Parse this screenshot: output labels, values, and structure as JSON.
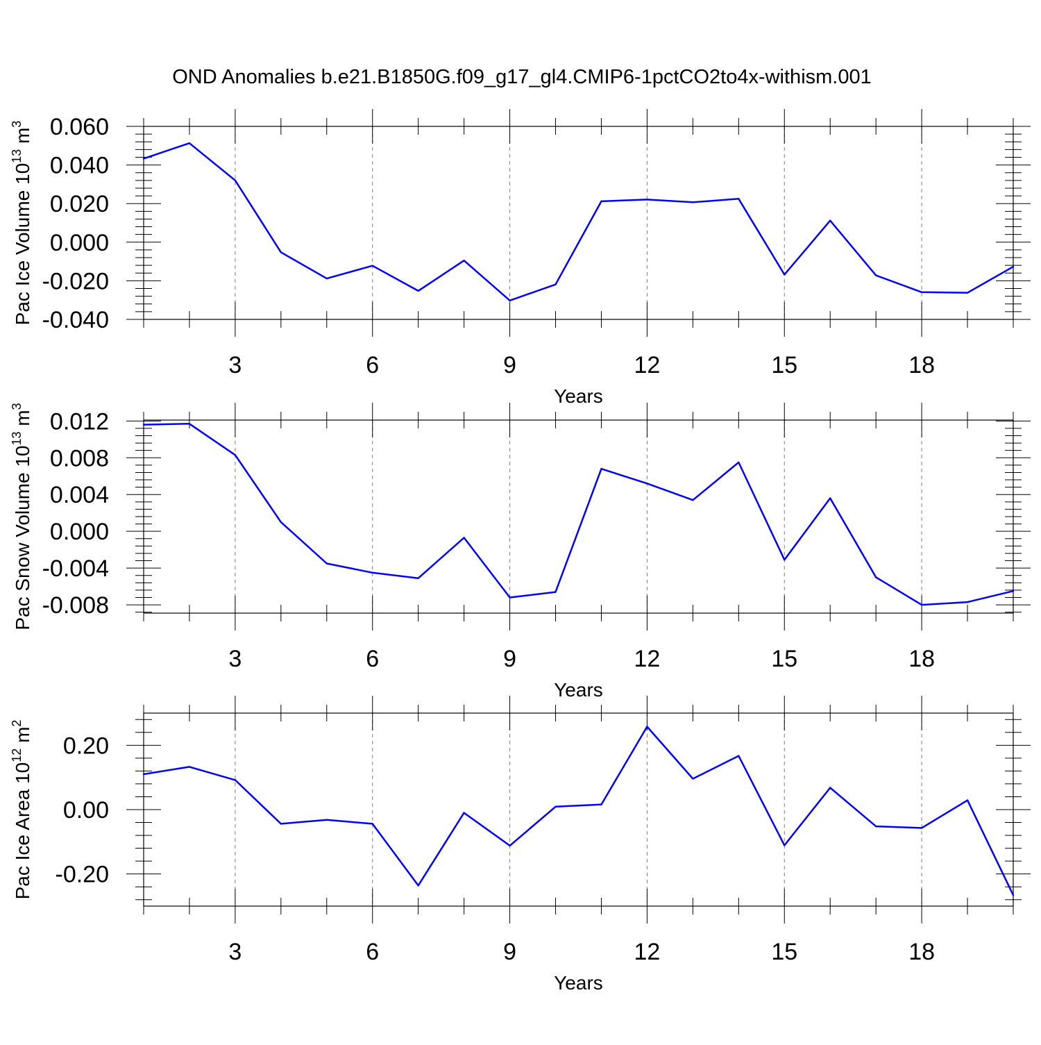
{
  "chart_data": [
    {
      "type": "line",
      "title": "OND Anomalies b.e21.B1850G.f09_g17_gl4.CMIP6-1pctCO2to4x-withism.001",
      "ylabel": {
        "main": "Pac Ice Volume 10",
        "exp": "13",
        "unit": " m",
        "unit_exp": "3"
      },
      "xlabel": "Years",
      "xlim": [
        1,
        20
      ],
      "ylim": [
        -0.04,
        0.06
      ],
      "xticks": [
        3,
        6,
        9,
        12,
        15,
        18
      ],
      "xtick_labels": [
        "3",
        "6",
        "9",
        "12",
        "15",
        "18"
      ],
      "yticks": [
        -0.04,
        -0.02,
        0.0,
        0.02,
        0.04,
        0.06
      ],
      "ytick_labels": [
        "-0.040",
        "-0.020",
        "0.000",
        "0.020",
        "0.040",
        "0.060"
      ],
      "grid": "vertical dashed at major x ticks",
      "color": "#0000ff",
      "x": [
        1,
        2,
        3,
        4,
        5,
        6,
        7,
        8,
        9,
        10,
        11,
        12,
        13,
        14,
        15,
        16,
        17,
        18,
        19,
        20
      ],
      "y": [
        0.0433,
        0.0513,
        0.032,
        -0.0052,
        -0.0188,
        -0.0122,
        -0.0252,
        -0.0095,
        -0.0302,
        -0.0219,
        0.0212,
        0.0221,
        0.0207,
        0.0225,
        -0.0168,
        0.0112,
        -0.0172,
        -0.0259,
        -0.0262,
        -0.0127
      ]
    },
    {
      "type": "line",
      "title": "",
      "ylabel": {
        "main": "Pac Snow Volume 10",
        "exp": "13",
        "unit": " m",
        "unit_exp": "3"
      },
      "xlabel": "Years",
      "xlim": [
        1,
        20
      ],
      "ylim": [
        -0.0089,
        0.0121
      ],
      "xticks": [
        3,
        6,
        9,
        12,
        15,
        18
      ],
      "xtick_labels": [
        "3",
        "6",
        "9",
        "12",
        "15",
        "18"
      ],
      "yticks": [
        -0.008,
        -0.004,
        0.0,
        0.004,
        0.008,
        0.012
      ],
      "ytick_labels": [
        "-0.008",
        "-0.004",
        "0.000",
        "0.004",
        "0.008",
        "0.012"
      ],
      "grid": "vertical dashed at major x ticks",
      "color": "#0000ff",
      "x": [
        1,
        2,
        3,
        4,
        5,
        6,
        7,
        8,
        9,
        10,
        11,
        12,
        13,
        14,
        15,
        16,
        17,
        18,
        19,
        20
      ],
      "y": [
        0.0116,
        0.0117,
        0.0083,
        0.001,
        -0.0035,
        -0.0045,
        -0.0051,
        -0.0007,
        -0.0072,
        -0.0066,
        0.0068,
        0.0052,
        0.0034,
        0.0075,
        -0.0031,
        0.0036,
        -0.005,
        -0.008,
        -0.0077,
        -0.0065
      ]
    },
    {
      "type": "line",
      "title": "",
      "ylabel": {
        "main": "Pac Ice Area 10",
        "exp": "12",
        "unit": " m",
        "unit_exp": "2"
      },
      "xlabel": "Years",
      "xlim": [
        1,
        20
      ],
      "ylim": [
        -0.3,
        0.3
      ],
      "xticks": [
        3,
        6,
        9,
        12,
        15,
        18
      ],
      "xtick_labels": [
        "3",
        "6",
        "9",
        "12",
        "15",
        "18"
      ],
      "yticks": [
        -0.2,
        0.0,
        0.2
      ],
      "ytick_labels": [
        "-0.20",
        "0.00",
        "0.20"
      ],
      "grid": "vertical dashed at major x ticks",
      "color": "#0000ff",
      "x": [
        1,
        2,
        3,
        4,
        5,
        6,
        7,
        8,
        9,
        10,
        11,
        12,
        13,
        14,
        15,
        16,
        17,
        18,
        19,
        20
      ],
      "y": [
        0.11,
        0.133,
        0.092,
        -0.044,
        -0.032,
        -0.044,
        -0.236,
        -0.01,
        -0.112,
        0.009,
        0.016,
        0.258,
        0.096,
        0.167,
        -0.111,
        0.068,
        -0.052,
        -0.057,
        0.029,
        -0.266
      ]
    }
  ]
}
